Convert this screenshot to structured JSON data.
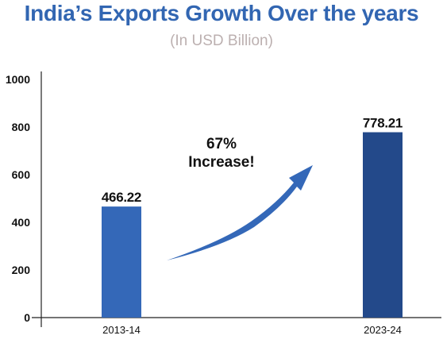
{
  "colors": {
    "title": "#3266b2",
    "subtitle": "#bcb0b0",
    "bar_2013": "#3468b8",
    "bar_2023": "#23498a",
    "arrow": "#3468b8",
    "axis": "#222222"
  },
  "chart_data": {
    "type": "bar",
    "title": "India’s Exports Growth Over the years",
    "subtitle": "(In USD Billion)",
    "xlabel": "",
    "ylabel": "",
    "categories": [
      "2013-14",
      "2023-24"
    ],
    "values": [
      466.22,
      778.21
    ],
    "data_labels": [
      "466.22",
      "778.21"
    ],
    "ylim": [
      0,
      1000
    ],
    "yticks": [
      0,
      200,
      400,
      600,
      800,
      1000
    ],
    "grid": false,
    "annotation": {
      "lines": [
        "67%",
        "Increase!"
      ],
      "arrow_icon": "up-right-arrow-icon"
    }
  }
}
